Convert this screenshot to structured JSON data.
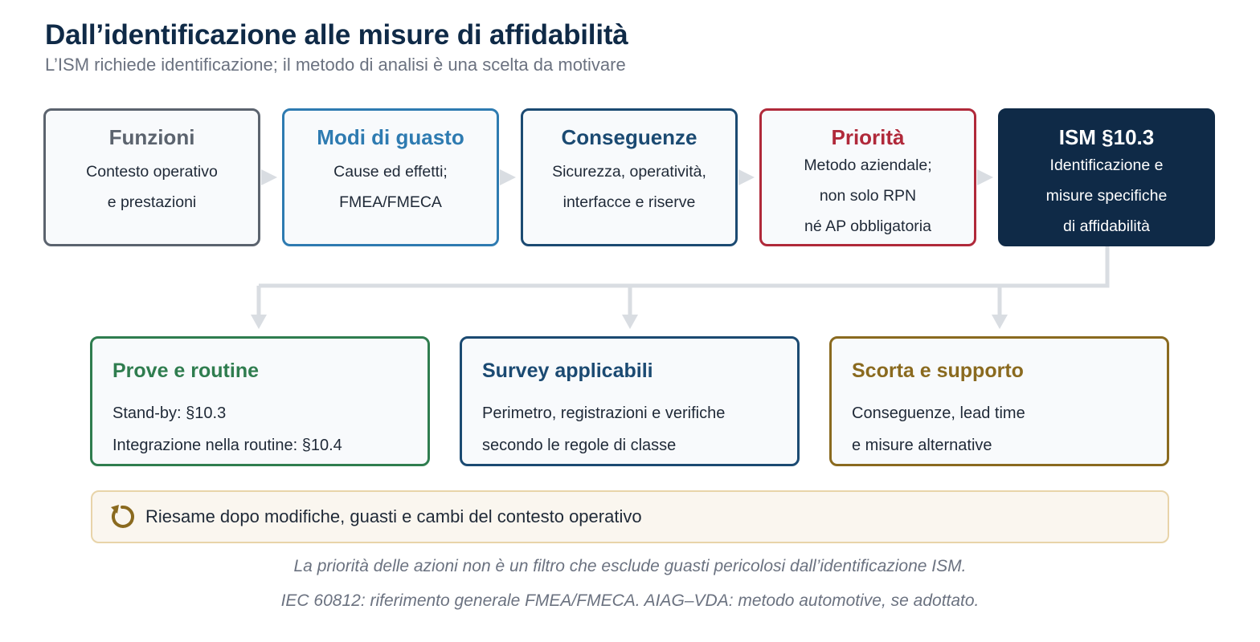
{
  "header": {
    "title": "Dall’identificazione alle misure di affidabilità",
    "subtitle": "L’ISM richiede identificazione; il metodo di analisi è una scelta da motivare"
  },
  "steps": [
    {
      "title": "Funzioni",
      "lines": [
        "Contesto operativo",
        "e prestazioni"
      ],
      "color": "#5b636e"
    },
    {
      "title": "Modi di guasto",
      "lines": [
        "Cause ed effetti;",
        "FMEA/FMECA"
      ],
      "color": "#2e7bb1"
    },
    {
      "title": "Conseguenze",
      "lines": [
        "Sicurezza, operatività,",
        "interfacce e riserve"
      ],
      "color": "#1b4a72"
    },
    {
      "title": "Priorità",
      "lines": [
        "Metodo aziendale;",
        "non solo RPN",
        "né AP obbligatoria"
      ],
      "color": "#b0293a"
    },
    {
      "title": "ISM §10.3",
      "lines": [
        "Identificazione e",
        "misure specifiche",
        "di affidabilità"
      ],
      "color": "#0f2a47"
    }
  ],
  "outcomes": [
    {
      "title": "Prove e routine",
      "lines": [
        "Stand-by: §10.3",
        "Integrazione nella routine: §10.4"
      ],
      "color": "#2f7d4f"
    },
    {
      "title": "Survey applicabili",
      "lines": [
        "Perimetro, registrazioni e verifiche",
        "secondo le regole di classe"
      ],
      "color": "#1b4a72"
    },
    {
      "title": "Scorta e supporto",
      "lines": [
        "Conseguenze, lead time",
        "e misure alternative"
      ],
      "color": "#8a6a1f"
    }
  ],
  "review": {
    "text": "Riesame dopo modifiche, guasti e cambi del contesto operativo",
    "icon": "refresh-icon",
    "icon_color": "#8a6a1f"
  },
  "footnotes": [
    "La priorità delle azioni non è un filtro che esclude guasti pericolosi dall’identificazione ISM.",
    "IEC 60812: riferimento generale FMEA/FMECA. AIAG–VDA: metodo automotive, se adottato."
  ],
  "colors": {
    "connector": "#d9dde2",
    "title": "#0f2a47",
    "subtitle": "#6b7280"
  }
}
